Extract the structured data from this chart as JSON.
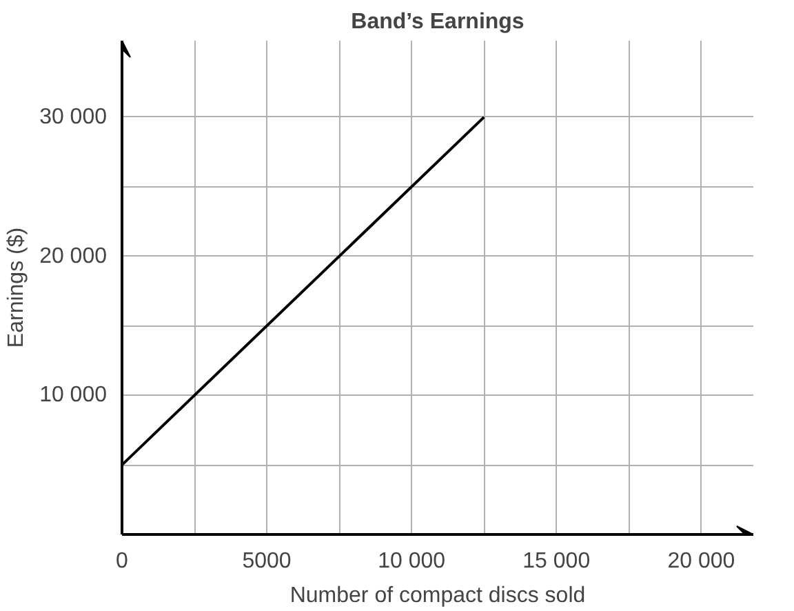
{
  "chart_data": {
    "type": "line",
    "title": "Band’s Earnings",
    "xlabel": "Number of compact discs sold",
    "ylabel": "Earnings ($)",
    "x": [
      0,
      12500
    ],
    "series": [
      {
        "color": "#000000",
        "values": [
          5000,
          30000
        ]
      }
    ],
    "xlim": [
      0,
      21800
    ],
    "ylim": [
      0,
      35500
    ],
    "xticks": [
      0,
      {
        "value": 2500,
        "label": null
      },
      5000,
      {
        "value": 7500,
        "label": null
      },
      {
        "value": 10000,
        "label": "10 000"
      },
      {
        "value": 12500,
        "label": null
      },
      {
        "value": 15000,
        "label": "15 000"
      },
      {
        "value": 17500,
        "label": null
      },
      {
        "value": 20000,
        "label": "20 000"
      }
    ],
    "yticks": [
      {
        "value": 0,
        "label": null
      },
      {
        "value": 5000,
        "label": null
      },
      {
        "value": 10000,
        "label": "10 000"
      },
      {
        "value": 15000,
        "label": null
      },
      {
        "value": 20000,
        "label": "20 000"
      },
      {
        "value": 25000,
        "label": null
      },
      {
        "value": 30000,
        "label": "30 000"
      }
    ],
    "grid": true,
    "marker": "none",
    "line_style": "solid"
  }
}
